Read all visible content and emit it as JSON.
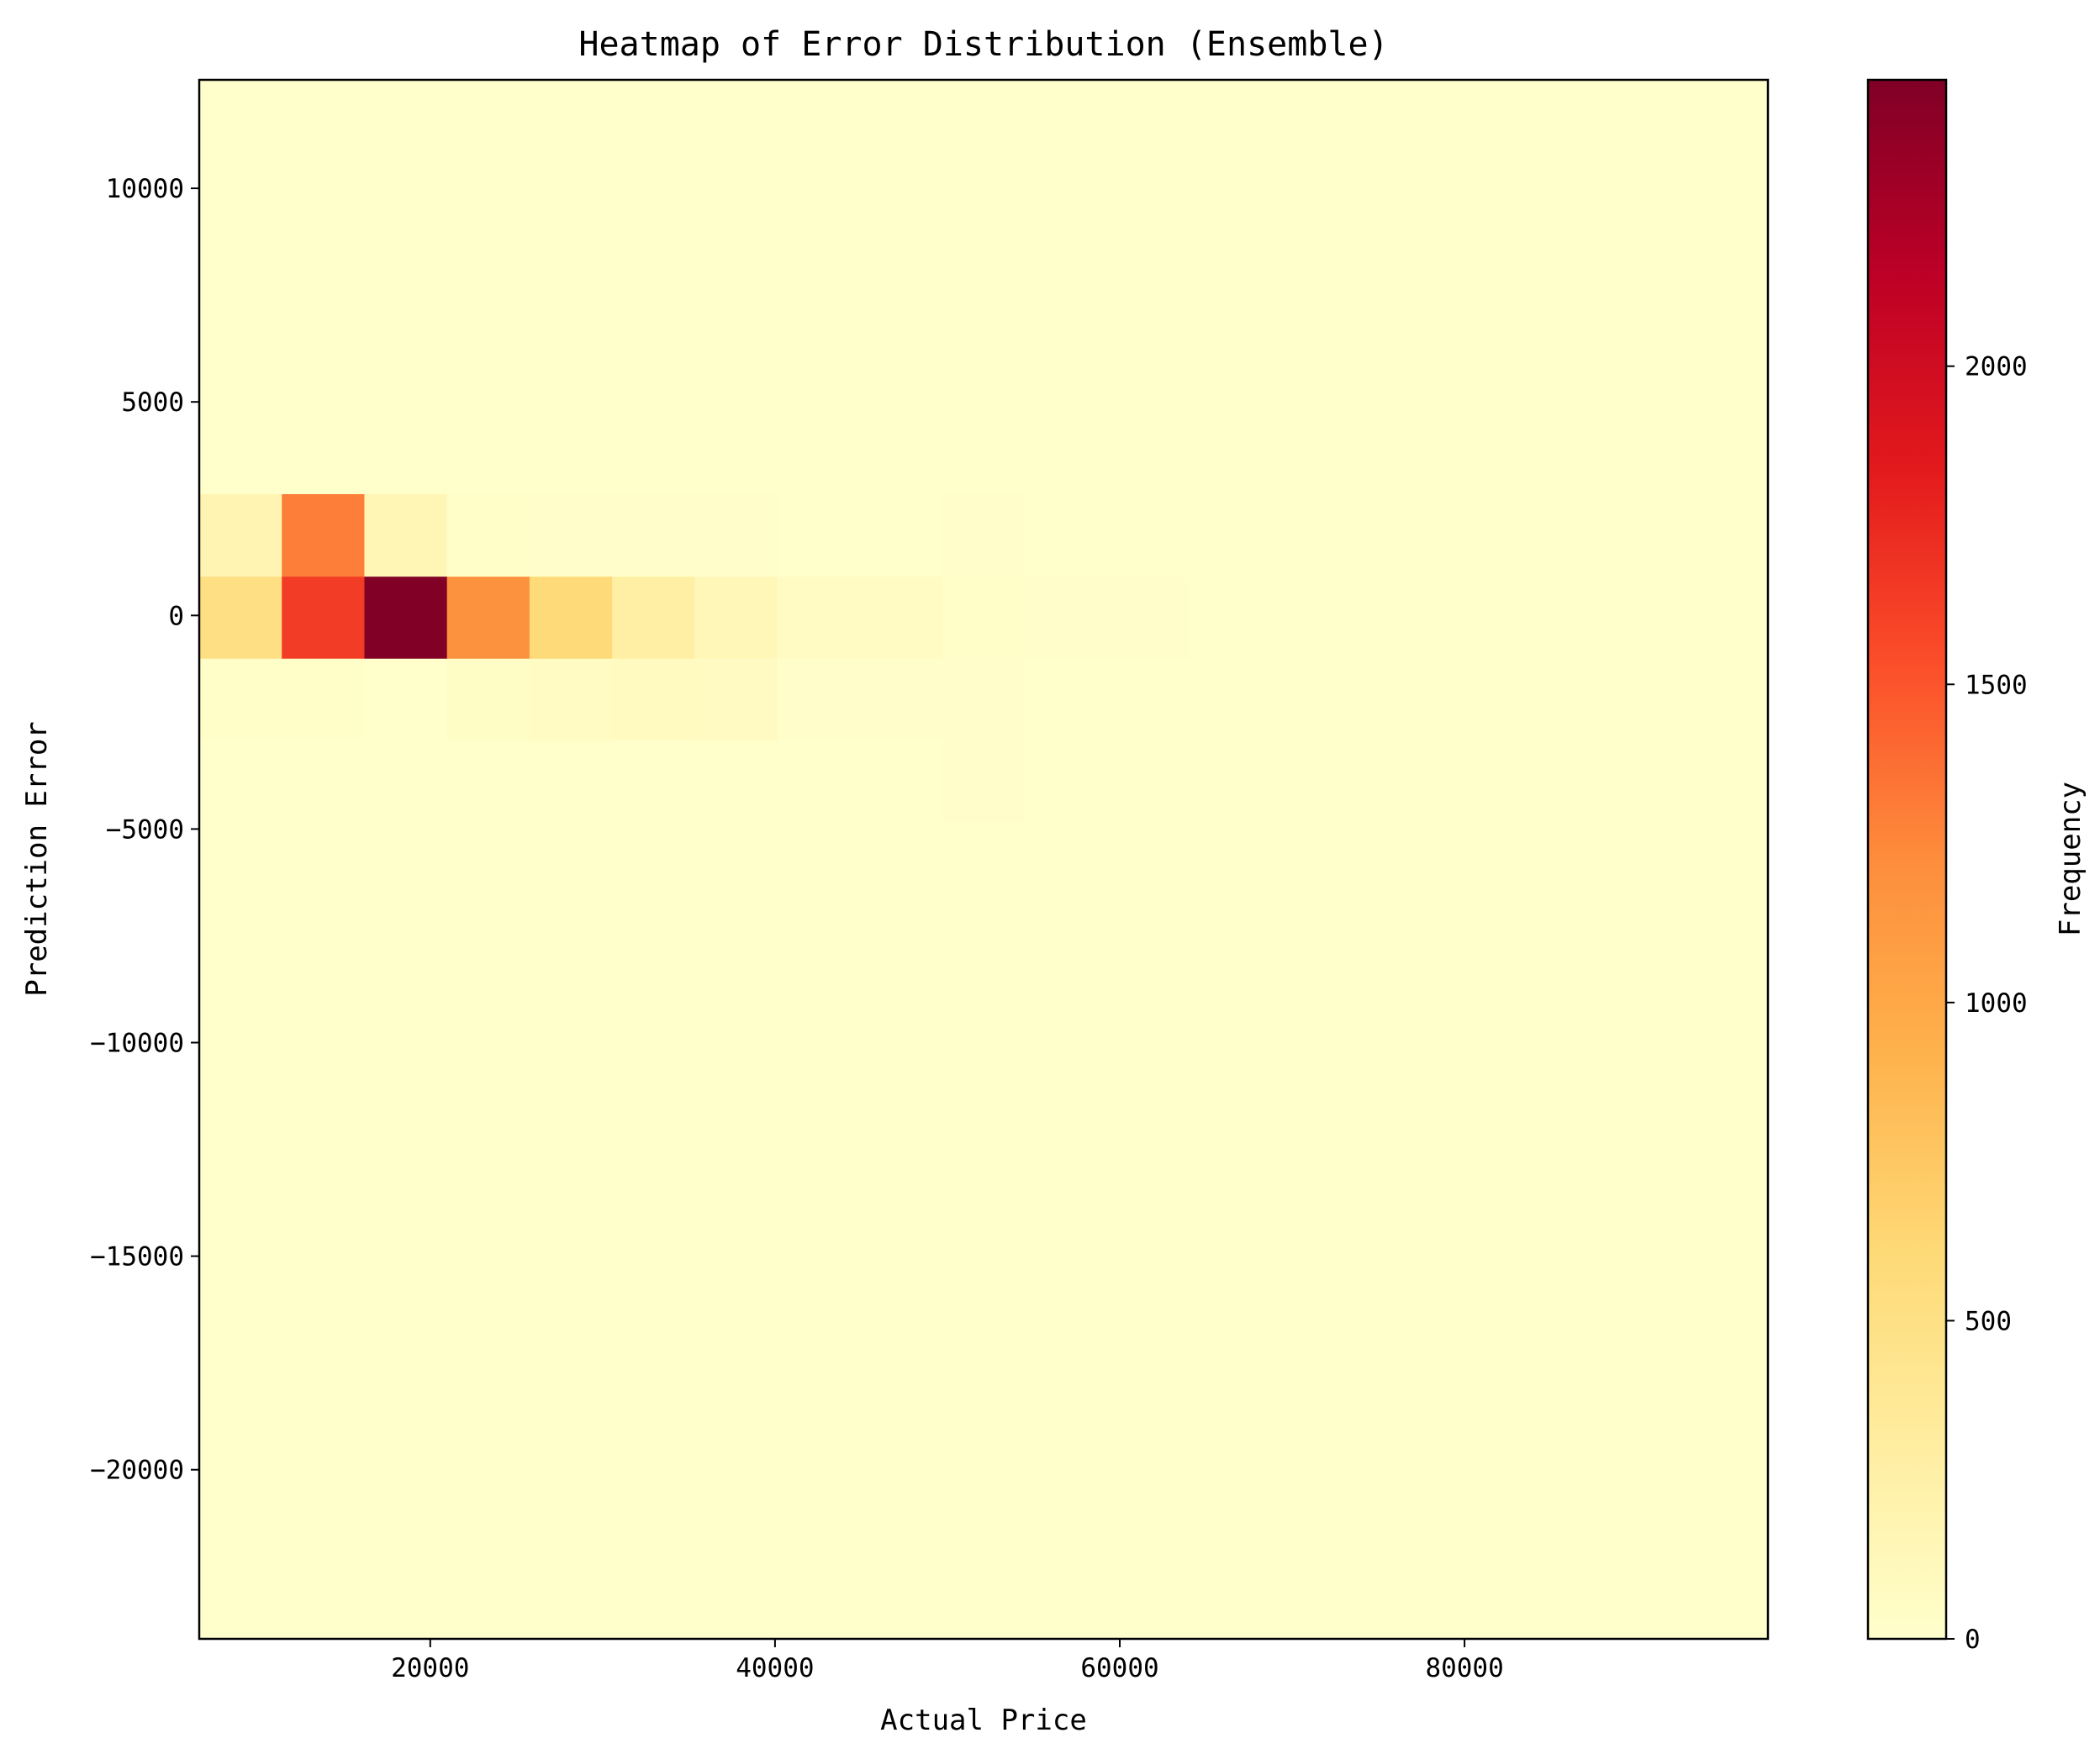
{
  "chart_data": {
    "type": "heatmap",
    "title": "Heatmap of Error Distribution (Ensemble)",
    "xlabel": "Actual Price",
    "ylabel": "Prediction Error",
    "xlim": [
      6600,
      97600
    ],
    "ylim": [
      -23960,
      12540
    ],
    "xticks": [
      20000,
      40000,
      60000,
      80000
    ],
    "yticks": [
      10000,
      5000,
      0,
      -5000,
      -10000,
      -15000,
      -20000
    ],
    "colorbar": {
      "label": "Frequency",
      "colormap": "YlOrRd",
      "range": [
        0,
        2450
      ],
      "ticks": [
        0,
        500,
        1000,
        1500,
        2000
      ]
    },
    "x_bin_edges": [
      6600,
      11390,
      16180,
      20970,
      25760,
      30550,
      35340,
      40130,
      44920,
      49710,
      54500,
      59290,
      64080,
      68870,
      73660
    ],
    "y_bin_edges": [
      -4840,
      -2920,
      -1000,
      920,
      2840
    ],
    "values": [
      [
        0,
        0,
        0,
        0,
        0,
        0,
        0,
        0,
        0,
        10,
        0,
        0,
        0,
        0
      ],
      [
        20,
        30,
        5,
        40,
        70,
        90,
        80,
        12,
        10,
        10,
        8,
        4,
        3,
        2
      ],
      [
        520,
        1640,
        2450,
        1180,
        590,
        280,
        140,
        70,
        60,
        30,
        12,
        10,
        6,
        2
      ],
      [
        180,
        1300,
        160,
        20,
        15,
        12,
        10,
        8,
        6,
        15,
        3,
        2,
        1,
        0
      ]
    ]
  }
}
